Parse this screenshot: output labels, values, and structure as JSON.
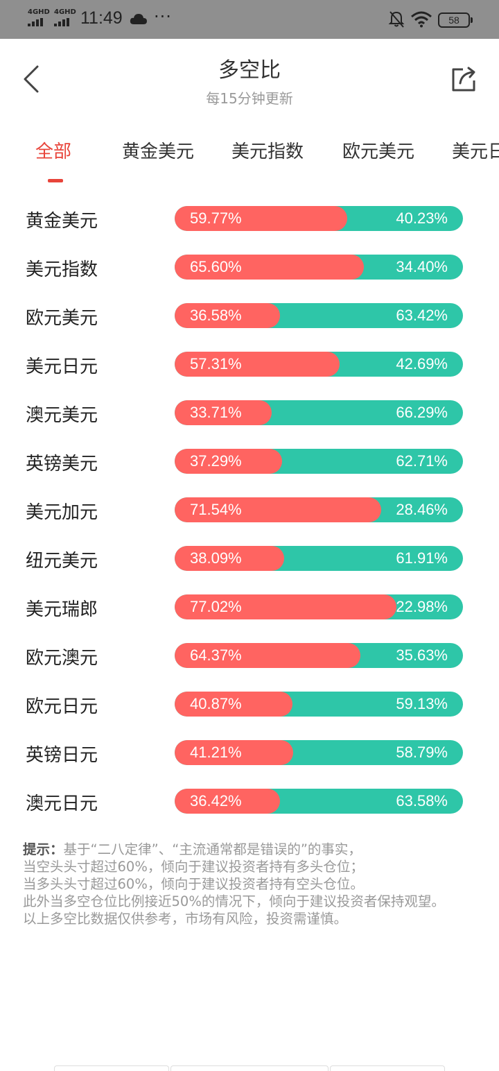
{
  "status_bar": {
    "network_1": "4GHD",
    "network_2": "4GHD",
    "time": "11:49",
    "more": "···",
    "battery": "58"
  },
  "header": {
    "title": "多空比",
    "subtitle": "每15分钟更新",
    "back_icon": "chevron-left-icon",
    "share_icon": "share-icon"
  },
  "tabs": [
    {
      "label": "全部",
      "active": true
    },
    {
      "label": "黄金美元",
      "active": false
    },
    {
      "label": "美元指数",
      "active": false
    },
    {
      "label": "欧元美元",
      "active": false
    },
    {
      "label": "美元日元",
      "active": false
    }
  ],
  "colors": {
    "long": "#ff6461",
    "short": "#2ec6a8",
    "accent": "#e8443a"
  },
  "rows": [
    {
      "name": "黄金美元",
      "long_pct": 59.77,
      "long": "59.77%",
      "short": "40.23%"
    },
    {
      "name": "美元指数",
      "long_pct": 65.6,
      "long": "65.60%",
      "short": "34.40%"
    },
    {
      "name": "欧元美元",
      "long_pct": 36.58,
      "long": "36.58%",
      "short": "63.42%"
    },
    {
      "name": "美元日元",
      "long_pct": 57.31,
      "long": "57.31%",
      "short": "42.69%"
    },
    {
      "name": "澳元美元",
      "long_pct": 33.71,
      "long": "33.71%",
      "short": "66.29%"
    },
    {
      "name": "英镑美元",
      "long_pct": 37.29,
      "long": "37.29%",
      "short": "62.71%"
    },
    {
      "name": "美元加元",
      "long_pct": 71.54,
      "long": "71.54%",
      "short": "28.46%"
    },
    {
      "name": "纽元美元",
      "long_pct": 38.09,
      "long": "38.09%",
      "short": "61.91%"
    },
    {
      "name": "美元瑞郎",
      "long_pct": 77.02,
      "long": "77.02%",
      "short": "22.98%"
    },
    {
      "name": "欧元澳元",
      "long_pct": 64.37,
      "long": "64.37%",
      "short": "35.63%"
    },
    {
      "name": "欧元日元",
      "long_pct": 40.87,
      "long": "40.87%",
      "short": "59.13%"
    },
    {
      "name": "英镑日元",
      "long_pct": 41.21,
      "long": "41.21%",
      "short": "58.79%"
    },
    {
      "name": "澳元日元",
      "long_pct": 36.42,
      "long": "36.42%",
      "short": "63.58%"
    }
  ],
  "tips": {
    "lead": "提示：",
    "line1": "基于“二八定律”、“主流通常都是错误的”的事实，",
    "line2": "当空头头寸超过60%，倾向于建议投资者持有多头仓位；",
    "line3": "当多头头寸超过60%，倾向于建议投资者持有空头仓位。",
    "line4": "此外当多空仓位比例接近50%的情况下，倾向于建议投资者保持观望。",
    "line5": "以上多空比数据仅供参考，市场有风险，投资需谨慎。"
  }
}
